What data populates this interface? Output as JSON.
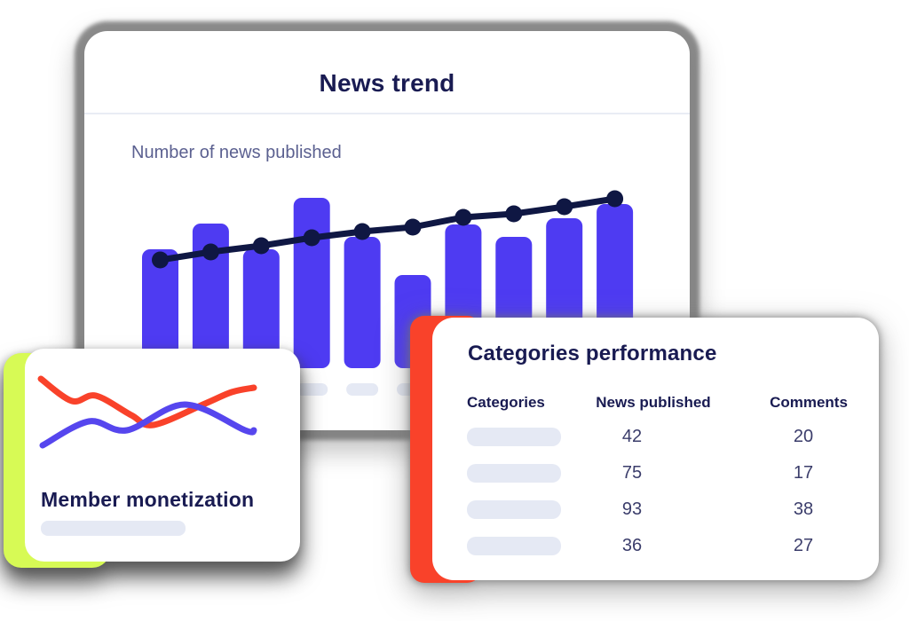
{
  "colors": {
    "bar_blue": "#4e3bf2",
    "trend_line_navy": "#0f1743",
    "title_navy": "#191b52",
    "muted_slate": "#5b6090",
    "placeholder_gray": "#e5e9f4",
    "divider_gray": "#e9ecf4",
    "lime_accent": "#d7fa55",
    "red_accent": "#f9422a",
    "member_line_red": "#f9422a",
    "member_line_blue": "#5646ee",
    "value_navy": "#3b3d6b",
    "card_bg": "#ffffff"
  },
  "news_trend_card": {
    "title": "News trend",
    "subtitle": "Number of news published",
    "chart_data": {
      "type": "bar",
      "note": "combo bar + line trend; no axis tick labels shown, x labels are gray placeholder pills; values estimated in relative pixel units",
      "categories": [
        "",
        "",
        "",
        "",
        "",
        "",
        "",
        "",
        "",
        ""
      ],
      "series": [
        {
          "name": "news-published-bars",
          "type": "bar",
          "color": "#4e3bf2",
          "values": [
            134,
            163,
            134,
            192,
            148,
            105,
            162,
            148,
            169,
            185
          ]
        },
        {
          "name": "trend-line",
          "type": "line",
          "color": "#0f1743",
          "values": [
            122,
            131,
            138,
            147,
            154,
            159,
            170,
            174,
            182,
            191
          ]
        }
      ],
      "ylim": [
        0,
        200
      ],
      "grid": false,
      "legend": false
    }
  },
  "member_card": {
    "title": "Member monetization",
    "chart_data": {
      "type": "line",
      "note": "decorative smooth sparklines, no axes; points in card-relative px",
      "series": [
        {
          "name": "member-line-red",
          "color": "#f9422a",
          "points": [
            [
              18,
              34
            ],
            [
              53,
              59
            ],
            [
              80,
              53
            ],
            [
              120,
              75
            ],
            [
              145,
              86
            ],
            [
              203,
              62
            ],
            [
              233,
              49
            ],
            [
              258,
              44
            ]
          ]
        },
        {
          "name": "member-line-blue",
          "color": "#5646ee",
          "points": [
            [
              20,
              109
            ],
            [
              72,
              82
            ],
            [
              115,
              92
            ],
            [
              180,
              63
            ],
            [
              248,
              92
            ],
            [
              258,
              92
            ]
          ]
        }
      ]
    }
  },
  "categories_card": {
    "title": "Categories performance",
    "table": {
      "columns": [
        "Categories",
        "News published",
        "Comments"
      ],
      "rows": [
        {
          "category_placeholder": "",
          "news_published": "42",
          "comments": "20"
        },
        {
          "category_placeholder": "",
          "news_published": "75",
          "comments": "17"
        },
        {
          "category_placeholder": "",
          "news_published": "93",
          "comments": "38"
        },
        {
          "category_placeholder": "",
          "news_published": "36",
          "comments": "27"
        }
      ]
    }
  }
}
